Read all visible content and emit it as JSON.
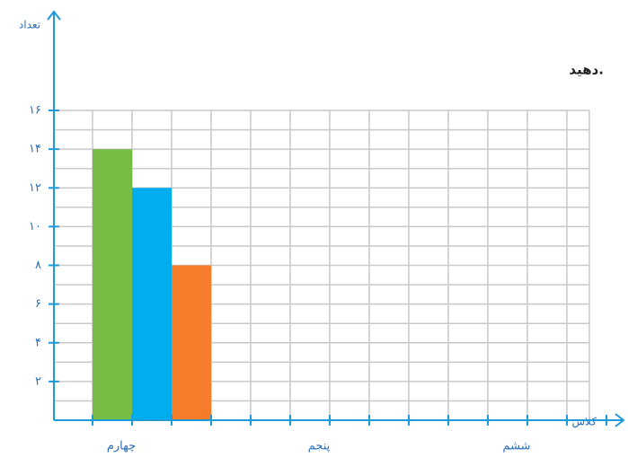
{
  "chart_data": {
    "type": "bar",
    "x_label": "کلاس",
    "y_label": "تعداد",
    "annotation": "دهید.",
    "categories": [
      "چهارم",
      "پنجم",
      "ششم"
    ],
    "series": [
      {
        "color": "#77bc44",
        "values": [
          14,
          null,
          null
        ]
      },
      {
        "color": "#00aeef",
        "values": [
          12,
          null,
          null
        ]
      },
      {
        "color": "#f47c2a",
        "values": [
          8,
          null,
          null
        ]
      }
    ],
    "ylim": [
      0,
      16
    ],
    "yticks": [
      {
        "value": 2,
        "label": "۲"
      },
      {
        "value": 4,
        "label": "۴"
      },
      {
        "value": 6,
        "label": "۶"
      },
      {
        "value": 8,
        "label": "۸"
      },
      {
        "value": 10,
        "label": "۱۰"
      },
      {
        "value": 12,
        "label": "۱۲"
      },
      {
        "value": 14,
        "label": "۱۴"
      },
      {
        "value": 16,
        "label": "۱۶"
      }
    ],
    "grid": true
  }
}
